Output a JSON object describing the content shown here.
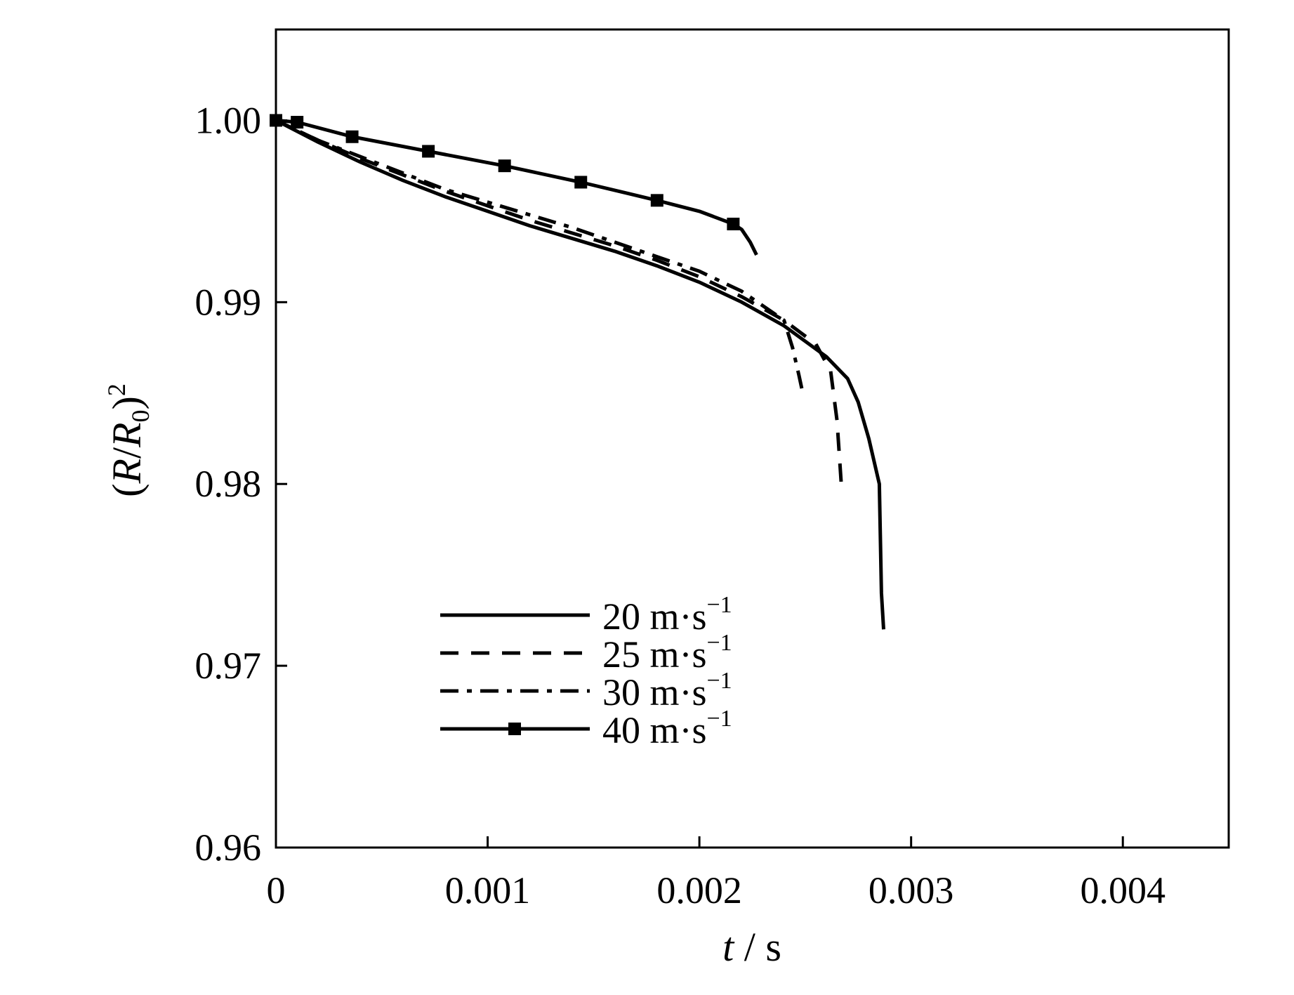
{
  "chart_data": {
    "type": "line",
    "xlabel": {
      "var": "t",
      "unit": "s"
    },
    "ylabel": {
      "paren_open": "(",
      "r": "R",
      "slash": "/",
      "r0": "R",
      "sub": "0",
      "paren_close": ")",
      "sup": "2"
    },
    "xlim": [
      0,
      0.0045
    ],
    "ylim": [
      0.96,
      1.005
    ],
    "xticks": [
      {
        "value": 0,
        "label": "0"
      },
      {
        "value": 0.001,
        "label": "0.001"
      },
      {
        "value": 0.002,
        "label": "0.002"
      },
      {
        "value": 0.003,
        "label": "0.003"
      },
      {
        "value": 0.004,
        "label": "0.004"
      }
    ],
    "yticks": [
      {
        "value": 0.96,
        "label": "0.96"
      },
      {
        "value": 0.97,
        "label": "0.97"
      },
      {
        "value": 0.98,
        "label": "0.98"
      },
      {
        "value": 0.99,
        "label": "0.99"
      },
      {
        "value": 1.0,
        "label": "1.00"
      }
    ],
    "grid": false,
    "legend_position": "lower-left",
    "series": [
      {
        "name": "20 m·s⁻¹",
        "legend": {
          "num": "20",
          "unit": " m·s",
          "sup": "−1"
        },
        "style": "solid",
        "points": [
          [
            0,
            1.0
          ],
          [
            0.0002,
            0.9988
          ],
          [
            0.0004,
            0.9977
          ],
          [
            0.0006,
            0.9967
          ],
          [
            0.0008,
            0.9958
          ],
          [
            0.001,
            0.995
          ],
          [
            0.0012,
            0.9942
          ],
          [
            0.0014,
            0.9935
          ],
          [
            0.0016,
            0.9928
          ],
          [
            0.0018,
            0.992
          ],
          [
            0.002,
            0.9911
          ],
          [
            0.0022,
            0.99
          ],
          [
            0.0024,
            0.9887
          ],
          [
            0.0026,
            0.987
          ],
          [
            0.0027,
            0.9858
          ],
          [
            0.00275,
            0.9845
          ],
          [
            0.0028,
            0.9825
          ],
          [
            0.00285,
            0.98
          ],
          [
            0.00286,
            0.974
          ],
          [
            0.00287,
            0.972
          ]
        ]
      },
      {
        "name": "25 m·s⁻¹",
        "legend": {
          "num": "25",
          "unit": " m·s",
          "sup": "−1"
        },
        "style": "dashed",
        "points": [
          [
            0,
            1.0
          ],
          [
            0.0002,
            0.9989
          ],
          [
            0.0004,
            0.9979
          ],
          [
            0.0006,
            0.997
          ],
          [
            0.0008,
            0.9961
          ],
          [
            0.001,
            0.9953
          ],
          [
            0.0012,
            0.9945
          ],
          [
            0.0014,
            0.9938
          ],
          [
            0.0016,
            0.9931
          ],
          [
            0.0018,
            0.9923
          ],
          [
            0.002,
            0.9914
          ],
          [
            0.0022,
            0.9903
          ],
          [
            0.0024,
            0.989
          ],
          [
            0.00255,
            0.9877
          ],
          [
            0.00262,
            0.9862
          ],
          [
            0.00265,
            0.9835
          ],
          [
            0.00267,
            0.98
          ]
        ]
      },
      {
        "name": "30 m·s⁻¹",
        "legend": {
          "num": "30",
          "unit": " m·s",
          "sup": "−1"
        },
        "style": "dashdot",
        "points": [
          [
            0,
            1.0
          ],
          [
            0.0002,
            0.9989
          ],
          [
            0.0004,
            0.998
          ],
          [
            0.0006,
            0.9971
          ],
          [
            0.0008,
            0.9962
          ],
          [
            0.001,
            0.9955
          ],
          [
            0.0012,
            0.9948
          ],
          [
            0.0014,
            0.9941
          ],
          [
            0.0016,
            0.9933
          ],
          [
            0.0018,
            0.9925
          ],
          [
            0.002,
            0.9917
          ],
          [
            0.0022,
            0.9906
          ],
          [
            0.0024,
            0.989
          ],
          [
            0.00244,
            0.9875
          ],
          [
            0.00247,
            0.986
          ],
          [
            0.00249,
            0.9849
          ]
        ]
      },
      {
        "name": "40 m·s⁻¹",
        "legend": {
          "num": "40",
          "unit": " m·s",
          "sup": "−1"
        },
        "style": "solid-square",
        "points": [
          [
            0,
            1.0
          ],
          [
            0.0001,
            0.9999
          ],
          [
            0.00036,
            0.9991
          ],
          [
            0.00072,
            0.9983
          ],
          [
            0.00108,
            0.9975
          ],
          [
            0.00144,
            0.9966
          ],
          [
            0.0018,
            0.9956
          ],
          [
            0.002,
            0.995
          ],
          [
            0.00216,
            0.9943
          ],
          [
            0.0022,
            0.994
          ],
          [
            0.00224,
            0.9933
          ],
          [
            0.00227,
            0.9926
          ]
        ],
        "markers": [
          [
            0,
            1.0
          ],
          [
            0.0001,
            0.9999
          ],
          [
            0.00036,
            0.9991
          ],
          [
            0.00072,
            0.9983
          ],
          [
            0.00108,
            0.9975
          ],
          [
            0.00144,
            0.9966
          ],
          [
            0.0018,
            0.9956
          ],
          [
            0.00216,
            0.9943
          ]
        ]
      }
    ]
  }
}
